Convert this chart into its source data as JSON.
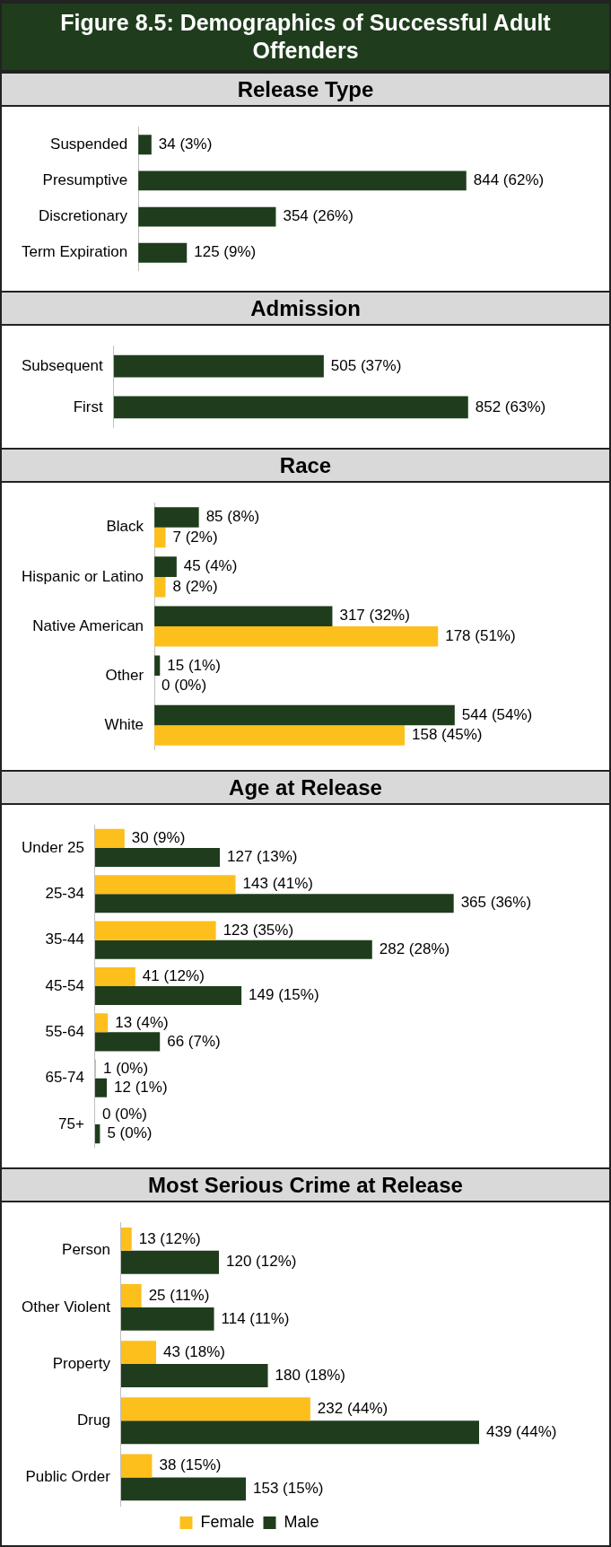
{
  "chart_data": [
    {
      "type": "bar",
      "orientation": "horizontal",
      "title": "Figure 8.5: Demographics of Successful Adult Offenders",
      "subtitle": "Release Type",
      "categories": [
        "Suspended",
        "Presumptive",
        "Discretionary",
        "Term Expiration"
      ],
      "values": [
        34,
        844,
        354,
        125
      ],
      "color": "#1f3d1c",
      "value_labels": [
        "34 (3%)",
        "844 (62%)",
        "354 (26%)",
        "125 (9%)"
      ]
    },
    {
      "type": "bar",
      "orientation": "horizontal",
      "title": "Admission",
      "categories": [
        "Subsequent",
        "First"
      ],
      "values": [
        505,
        852
      ],
      "color": "#1f3d1c",
      "value_labels": [
        "505 (37%)",
        "852 (63%)"
      ]
    },
    {
      "type": "bar",
      "orientation": "horizontal",
      "title": "Race",
      "categories": [
        "Black",
        "Hispanic or Latino",
        "Native American",
        "Other",
        "White"
      ],
      "series": [
        {
          "color": "#1f3d1c",
          "values": [
            8,
            4,
            32,
            1,
            54
          ],
          "value_labels": [
            "85 (8%)",
            "45 (4%)",
            "317 (32%)",
            "15 (1%)",
            "544 (54%)"
          ]
        },
        {
          "color": "#fdbf1c",
          "values": [
            2,
            2,
            51,
            0,
            45
          ],
          "value_labels": [
            "7 (2%)",
            "8 (2%)",
            "178 (51%)",
            "0 (0%)",
            "158 (45%)"
          ]
        }
      ]
    },
    {
      "type": "bar",
      "orientation": "horizontal",
      "title": "Age at Release",
      "categories": [
        "Under 25",
        "25-34",
        "35-44",
        "45-54",
        "55-64",
        "65-74",
        "75+"
      ],
      "series": [
        {
          "color": "#fdbf1c",
          "values": [
            30,
            143,
            123,
            41,
            13,
            1,
            0
          ],
          "value_labels": [
            "30 (9%)",
            "143 (41%)",
            "123 (35%)",
            "41 (12%)",
            "13 (4%)",
            "1 (0%)",
            "0 (0%)"
          ]
        },
        {
          "color": "#1f3d1c",
          "values": [
            127,
            365,
            282,
            149,
            66,
            12,
            5
          ],
          "value_labels": [
            "127 (13%)",
            "365 (36%)",
            "282 (28%)",
            "149 (15%)",
            "66 (7%)",
            "12 (1%)",
            "5 (0%)"
          ]
        }
      ]
    },
    {
      "type": "bar",
      "orientation": "horizontal",
      "title": "Most Serious Crime at Release",
      "legend": "bottom",
      "categories": [
        "Person",
        "Other Violent",
        "Property",
        "Drug",
        "Public Order"
      ],
      "series": [
        {
          "name": "Female",
          "color": "#fdbf1c",
          "values": [
            13,
            25,
            43,
            232,
            38
          ],
          "value_labels": [
            "13 (12%)",
            "25 (11%)",
            "43 (18%)",
            "232 (44%)",
            "38 (15%)"
          ]
        },
        {
          "name": "Male",
          "color": "#1f3d1c",
          "values": [
            120,
            114,
            180,
            439,
            153
          ],
          "value_labels": [
            "120 (12%)",
            "114 (11%)",
            "180 (18%)",
            "439 (44%)",
            "153 (15%)"
          ]
        }
      ]
    }
  ]
}
